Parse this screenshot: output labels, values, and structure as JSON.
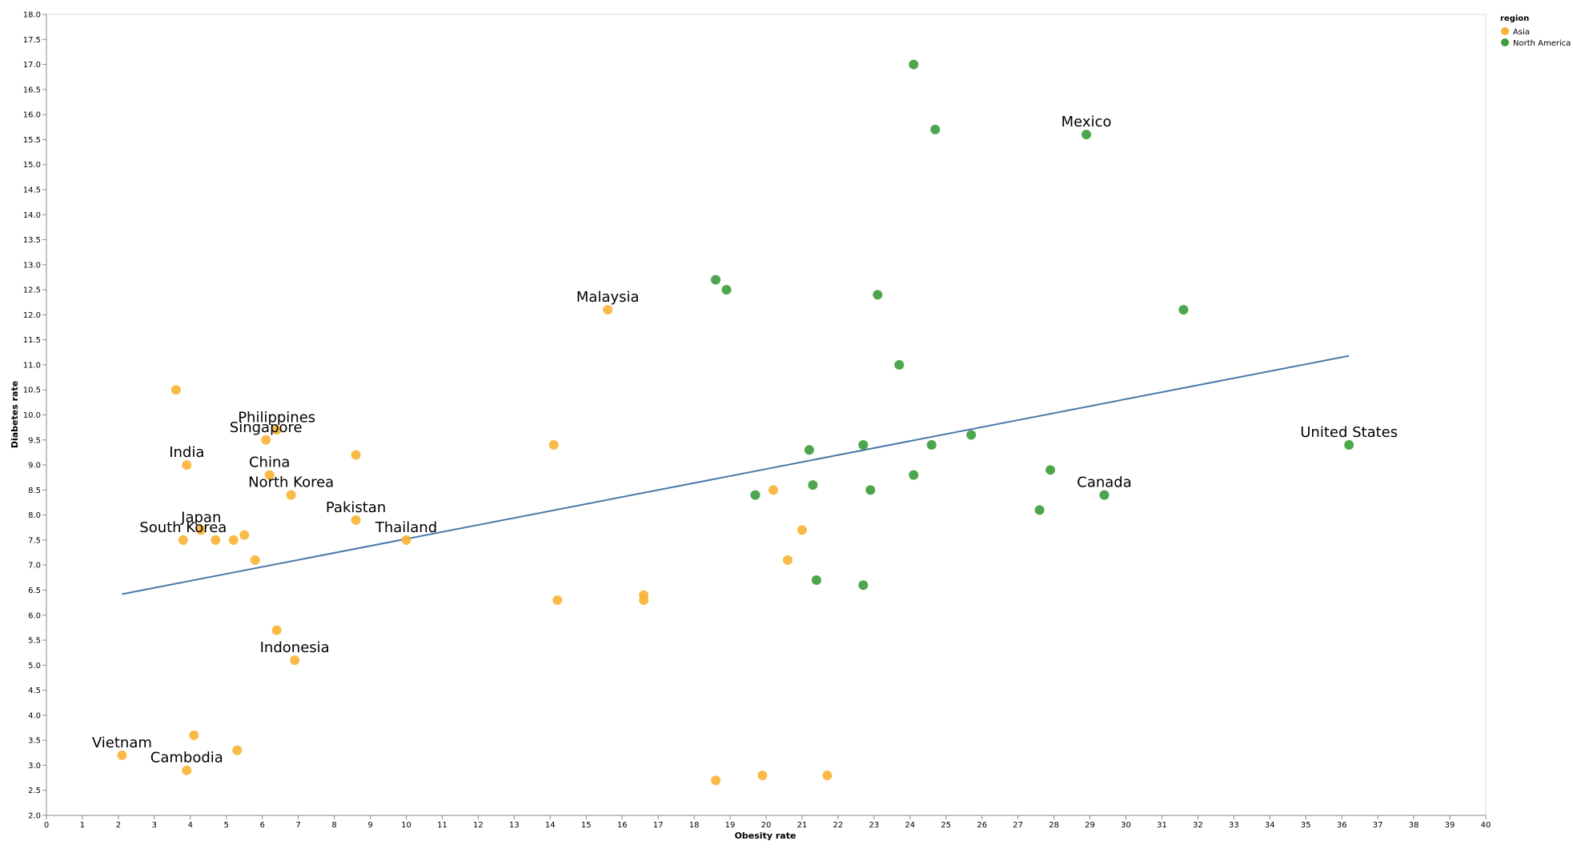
{
  "chart_data": {
    "type": "scatter",
    "xlabel": "Obesity rate",
    "ylabel": "Diabetes rate",
    "xlim": [
      0,
      40
    ],
    "ylim": [
      2,
      18
    ],
    "x_ticks": [
      "0",
      "1",
      "2",
      "3",
      "4",
      "5",
      "6",
      "7",
      "8",
      "9",
      "10",
      "11",
      "12",
      "13",
      "14",
      "15",
      "16",
      "17",
      "18",
      "19",
      "20",
      "21",
      "22",
      "23",
      "24",
      "25",
      "26",
      "27",
      "28",
      "29",
      "30",
      "31",
      "32",
      "33",
      "34",
      "35",
      "36",
      "37",
      "38",
      "39",
      "40"
    ],
    "y_ticks": [
      "2.0",
      "2.5",
      "3.0",
      "3.5",
      "4.0",
      "4.5",
      "5.0",
      "5.5",
      "6.0",
      "6.5",
      "7.0",
      "7.5",
      "8.0",
      "8.5",
      "9.0",
      "9.5",
      "10.0",
      "10.5",
      "11.0",
      "11.5",
      "12.0",
      "12.5",
      "13.0",
      "13.5",
      "14.0",
      "14.5",
      "15.0",
      "15.5",
      "16.0",
      "16.5",
      "17.0",
      "17.5",
      "18.0"
    ],
    "grid": false,
    "legend": {
      "title": "region",
      "position": "top-right",
      "entries": [
        {
          "name": "Asia",
          "color": "#f9b233"
        },
        {
          "name": "North America",
          "color": "#3a9c3a"
        }
      ]
    },
    "series": [
      {
        "name": "Asia",
        "color": "#f9b233",
        "points": [
          {
            "x": 3.6,
            "y": 10.5
          },
          {
            "x": 6.4,
            "y": 9.7,
            "label": "Philippines"
          },
          {
            "x": 6.1,
            "y": 9.5,
            "label": "Singapore"
          },
          {
            "x": 3.9,
            "y": 9.0,
            "label": "India"
          },
          {
            "x": 8.6,
            "y": 9.2
          },
          {
            "x": 6.2,
            "y": 8.8,
            "label": "China"
          },
          {
            "x": 6.8,
            "y": 8.4,
            "label": "North Korea"
          },
          {
            "x": 8.6,
            "y": 7.9,
            "label": "Pakistan"
          },
          {
            "x": 4.3,
            "y": 7.7,
            "label": "Japan"
          },
          {
            "x": 3.8,
            "y": 7.5,
            "label": "South Korea"
          },
          {
            "x": 4.7,
            "y": 7.5
          },
          {
            "x": 5.2,
            "y": 7.5
          },
          {
            "x": 5.5,
            "y": 7.6
          },
          {
            "x": 5.8,
            "y": 7.1
          },
          {
            "x": 10.0,
            "y": 7.5,
            "label": "Thailand"
          },
          {
            "x": 6.4,
            "y": 5.7
          },
          {
            "x": 6.9,
            "y": 5.1,
            "label": "Indonesia"
          },
          {
            "x": 2.1,
            "y": 3.2,
            "label": "Vietnam"
          },
          {
            "x": 4.1,
            "y": 3.6
          },
          {
            "x": 3.9,
            "y": 2.9,
            "label": "Cambodia"
          },
          {
            "x": 5.3,
            "y": 3.3
          },
          {
            "x": 15.6,
            "y": 12.1,
            "label": "Malaysia"
          },
          {
            "x": 14.1,
            "y": 9.4
          },
          {
            "x": 14.2,
            "y": 6.3
          },
          {
            "x": 16.6,
            "y": 6.4
          },
          {
            "x": 16.6,
            "y": 6.3
          },
          {
            "x": 20.2,
            "y": 8.5
          },
          {
            "x": 21.0,
            "y": 7.7
          },
          {
            "x": 20.6,
            "y": 7.1
          },
          {
            "x": 18.6,
            "y": 2.7
          },
          {
            "x": 19.9,
            "y": 2.8
          },
          {
            "x": 21.7,
            "y": 2.8
          }
        ]
      },
      {
        "name": "North America",
        "color": "#3a9c3a",
        "points": [
          {
            "x": 24.1,
            "y": 17.0
          },
          {
            "x": 24.7,
            "y": 15.7
          },
          {
            "x": 28.9,
            "y": 15.6,
            "label": "Mexico"
          },
          {
            "x": 18.6,
            "y": 12.7
          },
          {
            "x": 18.9,
            "y": 12.5
          },
          {
            "x": 23.1,
            "y": 12.4
          },
          {
            "x": 31.6,
            "y": 12.1
          },
          {
            "x": 23.7,
            "y": 11.0
          },
          {
            "x": 21.2,
            "y": 9.3
          },
          {
            "x": 22.7,
            "y": 9.4
          },
          {
            "x": 24.6,
            "y": 9.4
          },
          {
            "x": 25.7,
            "y": 9.6
          },
          {
            "x": 24.1,
            "y": 8.8
          },
          {
            "x": 19.7,
            "y": 8.4
          },
          {
            "x": 21.3,
            "y": 8.6
          },
          {
            "x": 22.9,
            "y": 8.5
          },
          {
            "x": 27.9,
            "y": 8.9
          },
          {
            "x": 29.4,
            "y": 8.4,
            "label": "Canada"
          },
          {
            "x": 27.6,
            "y": 8.1
          },
          {
            "x": 36.2,
            "y": 9.4,
            "label": "United States"
          },
          {
            "x": 21.4,
            "y": 6.7
          },
          {
            "x": 22.7,
            "y": 6.6
          }
        ]
      }
    ],
    "trendline": {
      "color": "#4c78a8",
      "x": [
        2.1,
        36.2
      ],
      "y": [
        6.42,
        11.18
      ]
    }
  }
}
